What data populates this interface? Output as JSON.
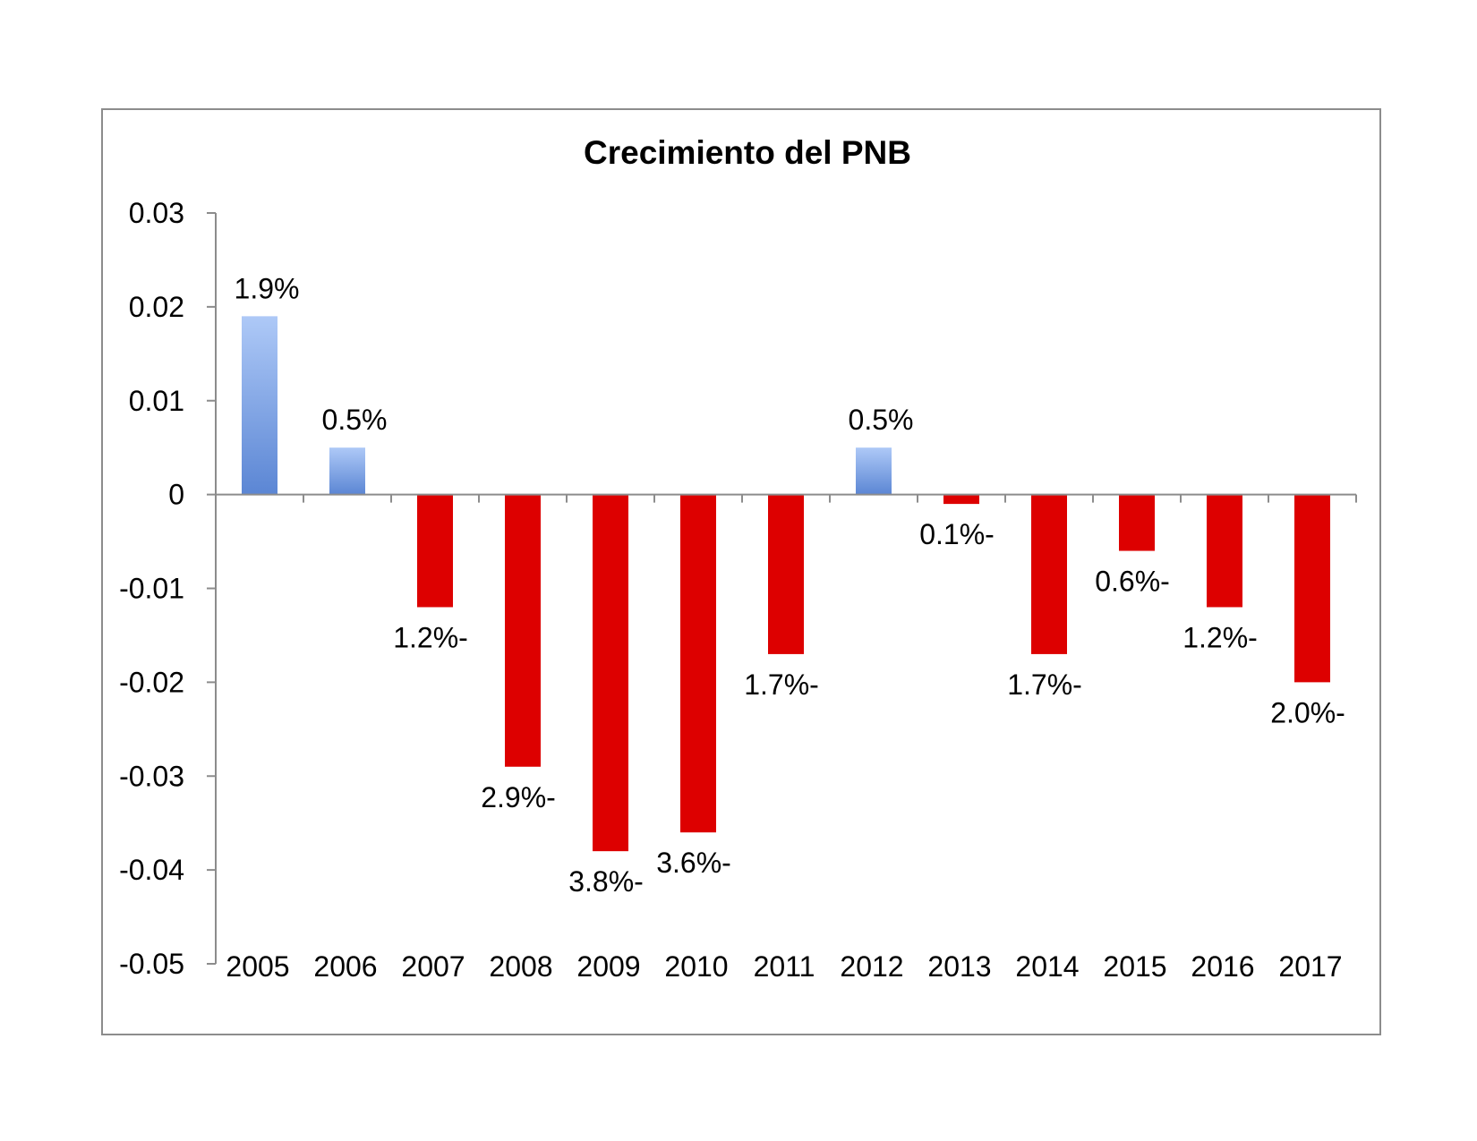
{
  "chart_data": {
    "type": "bar",
    "title": "Crecimiento del PNB",
    "xlabel": "",
    "ylabel": "",
    "categories": [
      "2005",
      "2006",
      "2007",
      "2008",
      "2009",
      "2010",
      "2011",
      "2012",
      "2013",
      "2014",
      "2015",
      "2016",
      "2017"
    ],
    "values": [
      0.019,
      0.005,
      -0.012,
      -0.029,
      -0.038,
      -0.036,
      -0.017,
      0.005,
      -0.001,
      -0.017,
      -0.006,
      -0.012,
      -0.02
    ],
    "data_labels": [
      "1.9%",
      "0.5%",
      "1.2%-",
      "2.9%-",
      "3.8%-",
      "3.6%-",
      "1.7%-",
      "0.5%",
      "0.1%-",
      "1.7%-",
      "0.6%-",
      "1.2%-",
      "2.0%-"
    ],
    "ylim": [
      -0.05,
      0.03
    ],
    "yticks": [
      "0.03",
      "0.02",
      "0.01",
      "0",
      "-0.01",
      "-0.02",
      "-0.03",
      "-0.04",
      "-0.05"
    ],
    "ytick_values": [
      0.03,
      0.02,
      0.01,
      0,
      -0.01,
      -0.02,
      -0.03,
      -0.04,
      -0.05
    ],
    "grid": false,
    "legend": "none",
    "colors": {
      "positive_top": "#aec9f7",
      "positive_bottom": "#5b86d4",
      "negative": "#dd0000",
      "axis": "#8c8c8c",
      "frame": "#8c8c8c"
    }
  }
}
